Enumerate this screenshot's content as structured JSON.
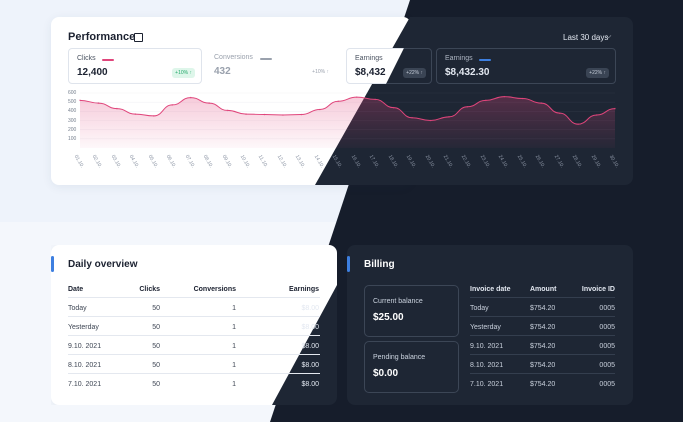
{
  "performance": {
    "title": "Performance",
    "date_range": "Last 30 days",
    "metrics": [
      {
        "label": "Clicks",
        "value": "12,400",
        "change": "+10% ↑",
        "color": "#e0457b"
      },
      {
        "label": "Conversions",
        "value": "432",
        "change": "+10% ↑",
        "color": "#9aa1ad"
      },
      {
        "label": "Earnings",
        "value": "$8,432",
        "change": "+22% ↑",
        "color": "#3d7fe0"
      },
      {
        "label": "Earnings",
        "value": "$8,432.30",
        "change": "+22% ↑",
        "color": "#3d7fe0"
      }
    ]
  },
  "chart_data": {
    "type": "area",
    "yticks": [
      "600",
      "500",
      "400",
      "300",
      "200",
      "100"
    ],
    "ylim": [
      0,
      600
    ],
    "x": [
      "01.10.",
      "02.10.",
      "03.10.",
      "04.10.",
      "05.10.",
      "06.10.",
      "07.10.",
      "08.10.",
      "09.10.",
      "10.10.",
      "11.10.",
      "12.10.",
      "13.10.",
      "14.10.",
      "15.10.",
      "16.10.",
      "17.10.",
      "18.10.",
      "19.10.",
      "20.10.",
      "21.10.",
      "22.10.",
      "23.10.",
      "24.10.",
      "25.10.",
      "26.10.",
      "27.10.",
      "28.10.",
      "29.10.",
      "30.10."
    ],
    "series": [
      {
        "values": [
          520,
          490,
          430,
          370,
          350,
          470,
          550,
          490,
          410,
          370,
          365,
          360,
          365,
          420,
          510,
          555,
          530,
          440,
          330,
          300,
          340,
          450,
          520,
          560,
          540,
          490,
          380,
          260,
          360,
          430
        ]
      }
    ],
    "color": "#e0457b"
  },
  "daily": {
    "title": "Daily overview",
    "columns": [
      "Date",
      "Clicks",
      "Conversions",
      "Earnings"
    ],
    "rows": [
      [
        "Today",
        "50",
        "1",
        "$8.00"
      ],
      [
        "Yesterday",
        "50",
        "1",
        "$8.00"
      ],
      [
        "9.10. 2021",
        "50",
        "1",
        "$8.00"
      ],
      [
        "8.10. 2021",
        "50",
        "1",
        "$8.00"
      ],
      [
        "7.10. 2021",
        "50",
        "1",
        "$8.00"
      ]
    ]
  },
  "billing": {
    "title": "Billing",
    "current_balance_label": "Current balance",
    "current_balance": "$25.00",
    "pending_balance_label": "Pending balance",
    "pending_balance": "$0.00",
    "columns": [
      "Invoice date",
      "Amount",
      "Invoice ID"
    ],
    "rows": [
      [
        "Today",
        "$754.20",
        "0005"
      ],
      [
        "Yesterday",
        "$754.20",
        "0005"
      ],
      [
        "9.10. 2021",
        "$754.20",
        "0005"
      ],
      [
        "8.10. 2021",
        "$754.20",
        "0005"
      ],
      [
        "7.10. 2021",
        "$754.20",
        "0005"
      ]
    ]
  }
}
